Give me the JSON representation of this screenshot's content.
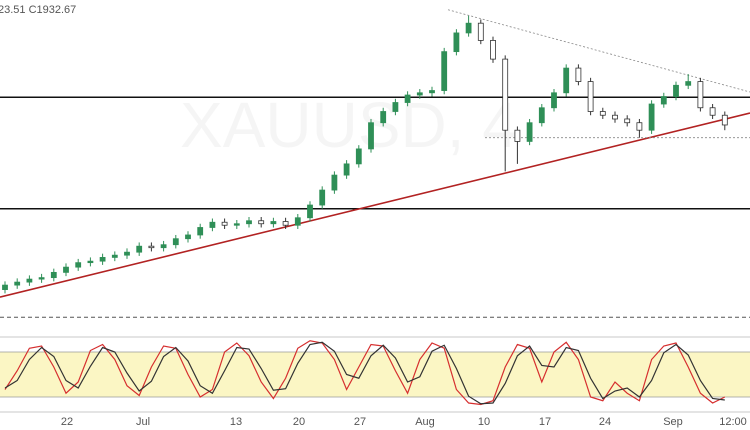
{
  "chart_data": {
    "type": "candlestick",
    "header": "23.51 C1932.67",
    "watermark": "XAUUSD, 4",
    "ylim": [
      1658,
      2099
    ],
    "up_color": "#2f8f57",
    "down_color": "#333333",
    "open": [
      1712,
      1718,
      1722,
      1726,
      1728,
      1735,
      1742,
      1748,
      1750,
      1755,
      1758,
      1762,
      1770,
      1768,
      1772,
      1780,
      1785,
      1795,
      1802,
      1798,
      1800,
      1804,
      1800,
      1803,
      1798,
      1808,
      1825,
      1845,
      1865,
      1880,
      1900,
      1935,
      1950,
      1962,
      1972,
      1975,
      1978,
      2030,
      2055,
      2068,
      2045,
      2020,
      1925,
      1910,
      1935,
      1955,
      1975,
      2008,
      1990,
      1950,
      1945,
      1940,
      1935,
      1925,
      1960,
      1970,
      1985,
      1990,
      1955,
      1945
    ],
    "high": [
      1723,
      1727,
      1731,
      1733,
      1740,
      1747,
      1753,
      1755,
      1760,
      1763,
      1767,
      1775,
      1775,
      1777,
      1785,
      1790,
      1800,
      1807,
      1807,
      1805,
      1809,
      1809,
      1808,
      1808,
      1813,
      1830,
      1850,
      1870,
      1885,
      1905,
      1940,
      1955,
      1967,
      1977,
      1980,
      1983,
      2035,
      2060,
      2078,
      2073,
      2050,
      2025,
      1930,
      1940,
      1960,
      1980,
      2013,
      2013,
      1995,
      1955,
      1950,
      1945,
      1940,
      1965,
      1975,
      1990,
      2000,
      1995,
      1960,
      1950
    ],
    "low": [
      1707,
      1713,
      1717,
      1721,
      1723,
      1730,
      1737,
      1743,
      1745,
      1750,
      1753,
      1757,
      1763,
      1763,
      1767,
      1775,
      1780,
      1790,
      1793,
      1793,
      1795,
      1795,
      1795,
      1793,
      1793,
      1803,
      1820,
      1840,
      1860,
      1875,
      1895,
      1930,
      1945,
      1957,
      1967,
      1970,
      1973,
      2025,
      2050,
      2040,
      2015,
      1870,
      1880,
      1905,
      1930,
      1950,
      1970,
      1985,
      1945,
      1940,
      1935,
      1930,
      1915,
      1920,
      1955,
      1965,
      1980,
      1950,
      1940,
      1925
    ],
    "close": [
      1718,
      1722,
      1726,
      1728,
      1735,
      1742,
      1748,
      1750,
      1755,
      1758,
      1762,
      1770,
      1768,
      1772,
      1780,
      1785,
      1795,
      1802,
      1798,
      1800,
      1804,
      1800,
      1803,
      1798,
      1808,
      1825,
      1845,
      1865,
      1880,
      1900,
      1935,
      1950,
      1962,
      1972,
      1975,
      1978,
      2030,
      2055,
      2068,
      2045,
      2020,
      1925,
      1910,
      1935,
      1955,
      1975,
      2008,
      1990,
      1950,
      1945,
      1940,
      1935,
      1925,
      1960,
      1970,
      1985,
      1990,
      1955,
      1945,
      1932
    ],
    "levels": [
      {
        "value": 1969,
        "color": "#111111"
      },
      {
        "value": 1820,
        "color": "#111111"
      },
      {
        "value": 1675,
        "color": "#555555",
        "dash": true
      }
    ],
    "trendlines": [
      {
        "values": [
          1702,
          1948
        ],
        "color": "#b22222"
      },
      {
        "values": [
          2086,
          1976
        ],
        "color": "#888888",
        "dash": true
      },
      {
        "values": [
          1915,
          1915
        ],
        "color": "#888888",
        "dash": true
      }
    ],
    "xticks": [
      "22",
      "Jul",
      "13",
      "20",
      "27",
      "Aug",
      "10",
      "17",
      "24",
      "Sep",
      "12:00"
    ],
    "oscillator": {
      "ylim": [
        0,
        100
      ],
      "band": [
        20,
        80
      ],
      "band_color": "#fbf6c4",
      "series": [
        {
          "color": "#d62f2f",
          "values": [
            30,
            55,
            85,
            88,
            60,
            25,
            40,
            82,
            90,
            70,
            35,
            22,
            60,
            88,
            85,
            50,
            20,
            30,
            80,
            92,
            75,
            40,
            18,
            45,
            85,
            95,
            92,
            70,
            30,
            60,
            90,
            88,
            55,
            25,
            70,
            92,
            85,
            30,
            12,
            10,
            15,
            60,
            90,
            85,
            40,
            80,
            93,
            70,
            20,
            15,
            40,
            25,
            15,
            70,
            88,
            92,
            60,
            25,
            12,
            20
          ]
        },
        {
          "color": "#333333",
          "values": [
            32,
            42,
            70,
            86,
            74,
            42,
            32,
            61,
            86,
            80,
            52,
            28,
            41,
            74,
            86,
            68,
            35,
            25,
            55,
            86,
            84,
            58,
            29,
            31,
            65,
            90,
            93,
            81,
            50,
            45,
            75,
            89,
            72,
            40,
            47,
            81,
            89,
            58,
            21,
            11,
            12,
            38,
            75,
            88,
            62,
            60,
            86,
            82,
            45,
            18,
            28,
            32,
            20,
            42,
            79,
            90,
            76,
            42,
            18,
            16
          ]
        }
      ]
    }
  }
}
